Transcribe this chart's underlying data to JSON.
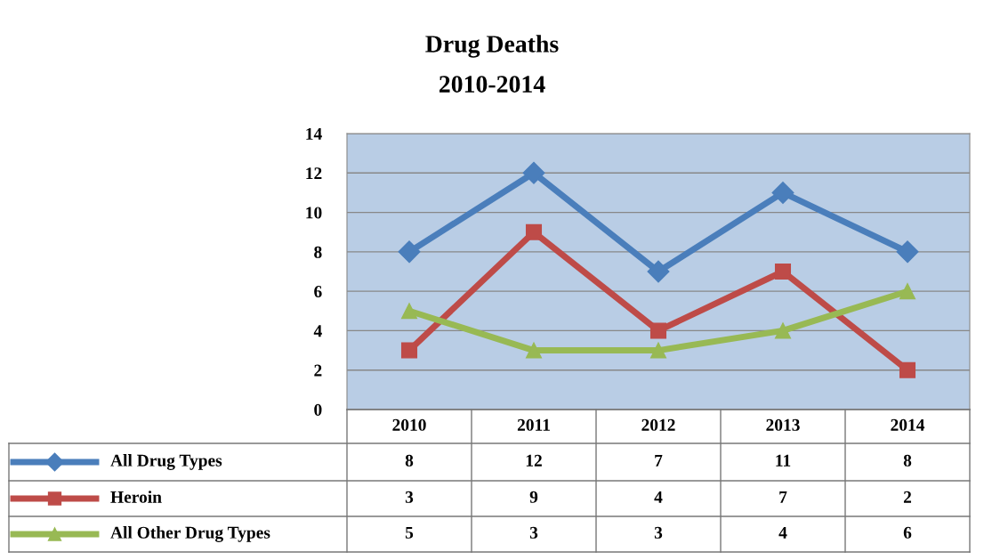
{
  "chart_data": {
    "type": "line",
    "title": "Drug Deaths",
    "subtitle": "2010-2014",
    "categories": [
      "2010",
      "2011",
      "2012",
      "2013",
      "2014"
    ],
    "series": [
      {
        "name": "All Drug Types",
        "color": "#4a7ebb",
        "marker": "diamond",
        "values": [
          8,
          12,
          7,
          11,
          8
        ]
      },
      {
        "name": "Heroin",
        "color": "#be4b48",
        "marker": "square",
        "values": [
          3,
          9,
          4,
          7,
          2
        ]
      },
      {
        "name": "All Other Drug Types",
        "color": "#98b954",
        "marker": "triangle",
        "values": [
          5,
          3,
          3,
          4,
          6
        ]
      }
    ],
    "ylim": [
      0,
      14
    ],
    "yticks": [
      0,
      2,
      4,
      6,
      8,
      10,
      12,
      14
    ],
    "grid": "y",
    "legend": "bottom",
    "data_labels": true,
    "line_style": "solid"
  }
}
